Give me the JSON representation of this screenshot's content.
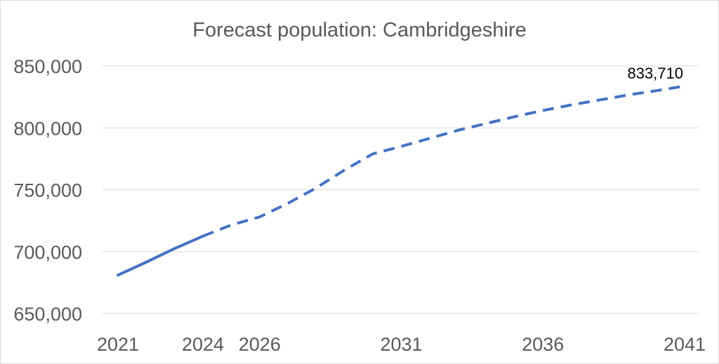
{
  "chart_data": {
    "type": "line",
    "title": "Forecast population: Cambridgeshire",
    "xlabel": "",
    "ylabel": "",
    "ylim": [
      650000,
      850000
    ],
    "yticks": [
      "650,000",
      "700,000",
      "750,000",
      "800,000",
      "850,000"
    ],
    "ytick_values": [
      650000,
      700000,
      750000,
      800000,
      850000
    ],
    "xticks": [
      "2021",
      "2024",
      "2026",
      "2031",
      "2036",
      "2041"
    ],
    "xtick_values": [
      2021,
      2024,
      2026,
      2031,
      2036,
      2041
    ],
    "xlim": [
      2021,
      2041
    ],
    "grid": true,
    "series": [
      {
        "color": "#4472c4",
        "x": [
          2021,
          2022,
          2023,
          2024,
          2025,
          2026,
          2027,
          2028,
          2029,
          2030,
          2031,
          2032,
          2033,
          2034,
          2035,
          2036,
          2037,
          2038,
          2039,
          2040,
          2041
        ],
        "values": [
          681000,
          691500,
          702500,
          712500,
          721500,
          728000,
          739000,
          751500,
          766000,
          779000,
          785000,
          791500,
          798000,
          803500,
          809000,
          814000,
          818500,
          822500,
          826500,
          830000,
          833710
        ],
        "solid_until": 2024,
        "style_after": "dashed"
      }
    ],
    "data_labels": [
      {
        "x": 2041,
        "y": 833710,
        "text": "833,710"
      }
    ]
  }
}
